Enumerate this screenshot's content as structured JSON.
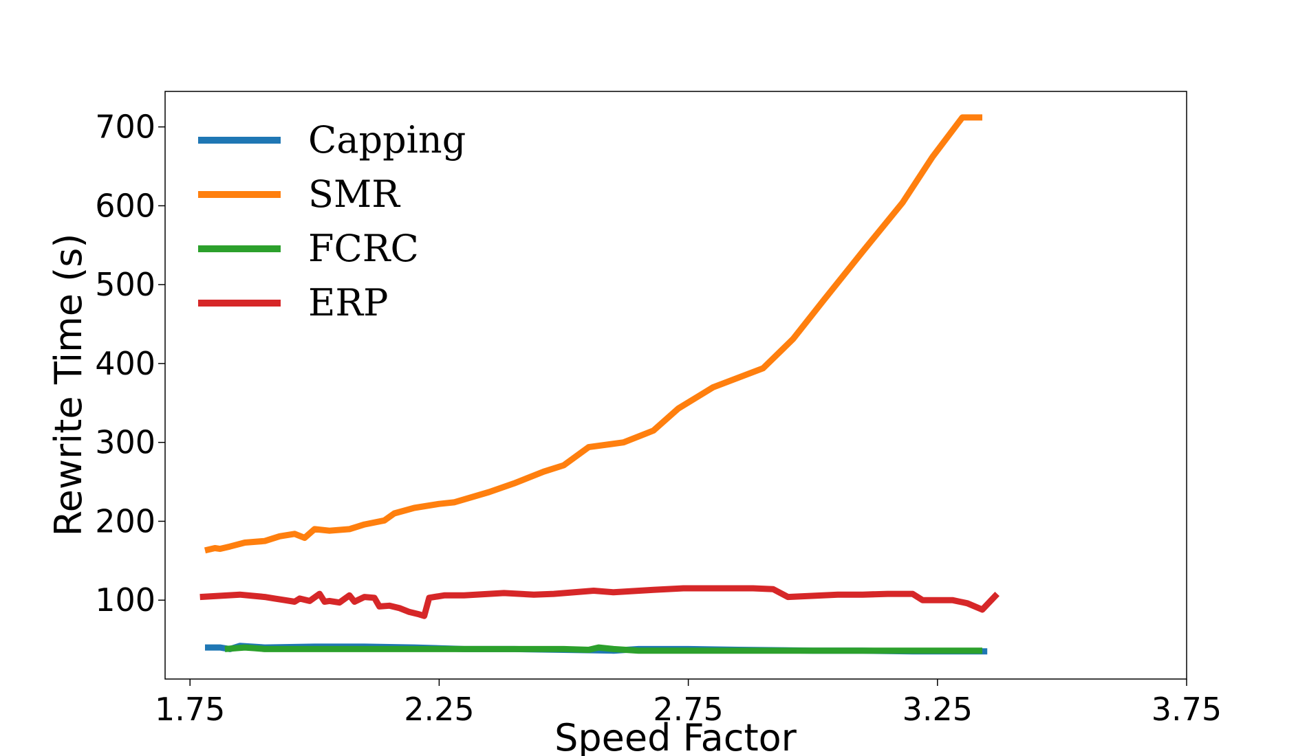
{
  "chart_data": {
    "type": "line",
    "xlabel": "Speed Factor",
    "ylabel": "Rewrite Time (s)",
    "xlim": [
      1.7,
      3.75
    ],
    "ylim": [
      0,
      745
    ],
    "xticks": [
      1.75,
      2.25,
      2.75,
      3.25,
      3.75
    ],
    "xtick_labels": [
      "1.75",
      "2.25",
      "2.75",
      "3.25",
      "3.75"
    ],
    "yticks": [
      100,
      200,
      300,
      400,
      500,
      600,
      700
    ],
    "ytick_labels": [
      "100",
      "200",
      "300",
      "400",
      "500",
      "600",
      "700"
    ],
    "grid": false,
    "legend_position": "top-left",
    "series": [
      {
        "name": "Capping",
        "color": "#1f77b4",
        "x": [
          1.78,
          1.81,
          1.83,
          1.85,
          1.9,
          2.0,
          2.1,
          2.2,
          2.3,
          2.4,
          2.5,
          2.6,
          2.65,
          2.75,
          2.85,
          3.0,
          3.1,
          3.2,
          3.3,
          3.35
        ],
        "y": [
          40,
          40,
          38,
          42,
          40,
          41,
          41,
          40,
          38,
          38,
          37,
          36,
          38,
          38,
          37,
          36,
          36,
          35,
          35,
          35
        ]
      },
      {
        "name": "SMR",
        "color": "#ff7f0e",
        "x": [
          1.78,
          1.8,
          1.81,
          1.83,
          1.86,
          1.9,
          1.93,
          1.96,
          1.98,
          2.0,
          2.03,
          2.07,
          2.1,
          2.14,
          2.16,
          2.2,
          2.25,
          2.28,
          2.35,
          2.4,
          2.46,
          2.5,
          2.55,
          2.62,
          2.68,
          2.73,
          2.8,
          2.9,
          2.96,
          3.02,
          3.1,
          3.18,
          3.24,
          3.3,
          3.34
        ],
        "y": [
          163,
          166,
          165,
          168,
          173,
          175,
          181,
          184,
          179,
          190,
          188,
          190,
          196,
          201,
          210,
          217,
          222,
          224,
          237,
          248,
          263,
          271,
          294,
          300,
          315,
          343,
          370,
          394,
          431,
          479,
          542,
          604,
          662,
          712,
          712
        ]
      },
      {
        "name": "FCRC",
        "color": "#2ca02c",
        "x": [
          1.82,
          1.86,
          1.88,
          1.9,
          1.95,
          2.0,
          2.05,
          2.1,
          2.15,
          2.2,
          2.3,
          2.35,
          2.45,
          2.5,
          2.55,
          2.57,
          2.6,
          2.65,
          2.7,
          2.8,
          2.9,
          3.0,
          3.1,
          3.2,
          3.3,
          3.34
        ],
        "y": [
          38,
          40,
          39,
          38,
          38,
          38,
          38,
          38,
          38,
          38,
          38,
          38,
          38,
          38,
          37,
          40,
          38,
          36,
          36,
          36,
          36,
          36,
          36,
          36,
          36,
          36
        ]
      },
      {
        "name": "ERP",
        "color": "#d62728",
        "x": [
          1.77,
          1.85,
          1.9,
          1.92,
          1.94,
          1.96,
          1.97,
          1.99,
          2.01,
          2.02,
          2.03,
          2.05,
          2.07,
          2.08,
          2.1,
          2.12,
          2.13,
          2.15,
          2.17,
          2.19,
          2.21,
          2.22,
          2.23,
          2.26,
          2.3,
          2.38,
          2.44,
          2.48,
          2.56,
          2.6,
          2.68,
          2.74,
          2.77,
          2.8,
          2.88,
          2.92,
          2.95,
          3.05,
          3.1,
          3.15,
          3.2,
          3.22,
          3.28,
          3.31,
          3.34,
          3.37
        ],
        "y": [
          104,
          107,
          104,
          102,
          100,
          98,
          102,
          99,
          108,
          98,
          99,
          97,
          106,
          98,
          104,
          103,
          92,
          93,
          90,
          85,
          82,
          80,
          103,
          106,
          106,
          109,
          107,
          108,
          112,
          110,
          113,
          115,
          115,
          115,
          115,
          114,
          104,
          107,
          107,
          108,
          108,
          100,
          100,
          96,
          88,
          108
        ]
      }
    ]
  }
}
